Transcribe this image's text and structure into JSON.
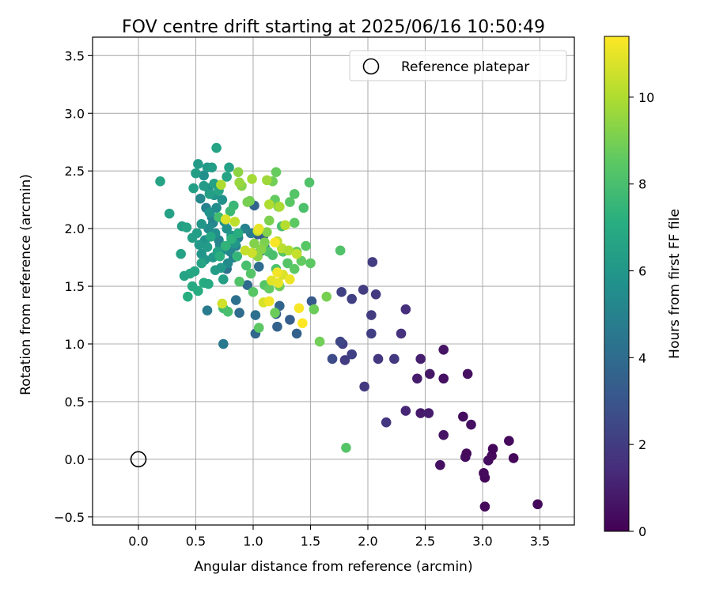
{
  "chart_data": {
    "type": "scatter",
    "title": "FOV centre drift starting at 2025/06/16 10:50:49",
    "xlabel": "Angular distance from reference (arcmin)",
    "ylabel": "Rotation from reference (arcmin)",
    "xlim": [
      -0.4,
      3.8
    ],
    "ylim": [
      -0.57,
      3.66
    ],
    "xticks": [
      0.0,
      0.5,
      1.0,
      1.5,
      2.0,
      2.5,
      3.0,
      3.5
    ],
    "xtick_labels": [
      "0.0",
      "0.5",
      "1.0",
      "1.5",
      "2.0",
      "2.5",
      "3.0",
      "3.5"
    ],
    "yticks": [
      -0.5,
      0.0,
      0.5,
      1.0,
      1.5,
      2.0,
      2.5,
      3.0,
      3.5
    ],
    "ytick_labels": [
      "−0.5",
      "0.0",
      "0.5",
      "1.0",
      "1.5",
      "2.0",
      "2.5",
      "3.0",
      "3.5"
    ],
    "grid": true,
    "legend": {
      "position": "top-right",
      "entries": [
        {
          "label": "Reference platepar",
          "marker": "open-circle"
        }
      ]
    },
    "reference_point": {
      "x": 0.0,
      "y": 0.0
    },
    "colorbar": {
      "label": "Hours from first FF file",
      "colormap": "viridis",
      "range": [
        0,
        11.4
      ],
      "ticks": [
        0,
        2,
        4,
        6,
        8,
        10
      ],
      "tick_labels": [
        "0",
        "2",
        "4",
        "6",
        "8",
        "10"
      ]
    },
    "series": [
      {
        "points": [
          [
            3.48,
            -0.39,
            0.2
          ],
          [
            3.02,
            -0.41,
            0.3
          ],
          [
            3.02,
            -0.16,
            0.2
          ],
          [
            3.01,
            -0.12,
            0.3
          ],
          [
            3.05,
            -0.01,
            0.4
          ],
          [
            3.08,
            0.03,
            0.3
          ],
          [
            3.09,
            0.09,
            0.2
          ],
          [
            3.23,
            0.16,
            0.3
          ],
          [
            3.27,
            0.01,
            0.2
          ],
          [
            2.85,
            0.02,
            0.4
          ],
          [
            2.86,
            0.05,
            0.3
          ],
          [
            2.9,
            0.3,
            0.5
          ],
          [
            2.83,
            0.37,
            0.4
          ],
          [
            2.66,
            0.21,
            0.6
          ],
          [
            2.63,
            -0.05,
            0.5
          ],
          [
            2.66,
            0.7,
            0.5
          ],
          [
            2.66,
            0.95,
            0.6
          ],
          [
            2.87,
            0.74,
            0.5
          ],
          [
            2.54,
            0.74,
            0.7
          ],
          [
            2.46,
            0.4,
            0.8
          ],
          [
            2.53,
            0.4,
            0.9
          ],
          [
            2.43,
            0.7,
            0.9
          ],
          [
            2.46,
            0.87,
            1.0
          ],
          [
            2.33,
            0.42,
            1.2
          ],
          [
            2.33,
            1.3,
            1.5
          ],
          [
            2.29,
            1.09,
            1.6
          ],
          [
            2.16,
            0.32,
            1.8
          ],
          [
            2.23,
            0.87,
            1.9
          ],
          [
            2.09,
            0.87,
            1.8
          ],
          [
            2.07,
            1.43,
            1.9
          ],
          [
            2.04,
            1.71,
            2.0
          ],
          [
            2.03,
            1.09,
            2.1
          ],
          [
            2.03,
            1.25,
            2.0
          ],
          [
            1.97,
            0.63,
            1.9
          ],
          [
            1.96,
            1.47,
            2.0
          ],
          [
            1.86,
            1.39,
            2.1
          ],
          [
            1.86,
            0.91,
            2.2
          ],
          [
            1.8,
            0.86,
            2.0
          ],
          [
            1.78,
            1.0,
            2.1
          ],
          [
            1.77,
            1.45,
            2.2
          ],
          [
            1.76,
            1.02,
            2.4
          ],
          [
            1.69,
            0.87,
            2.6
          ],
          [
            1.51,
            1.37,
            3.2
          ],
          [
            1.38,
            1.09,
            3.5
          ],
          [
            1.32,
            1.21,
            3.4
          ],
          [
            1.21,
            1.15,
            3.6
          ],
          [
            1.2,
            1.26,
            3.3
          ],
          [
            1.23,
            1.33,
            3.7
          ],
          [
            1.02,
            1.09,
            3.8
          ],
          [
            1.02,
            1.25,
            4.2
          ],
          [
            0.95,
            1.51,
            3.9
          ],
          [
            0.88,
            1.27,
            4.0
          ],
          [
            0.85,
            1.38,
            4.2
          ],
          [
            0.77,
            1.65,
            4.3
          ],
          [
            0.74,
            1.0,
            4.6
          ],
          [
            0.6,
            1.29,
            4.7
          ],
          [
            1.01,
            2.2,
            3.6
          ],
          [
            1.04,
            1.95,
            3.4
          ],
          [
            1.09,
            1.94,
            3.3
          ],
          [
            1.1,
            1.84,
            3.6
          ],
          [
            1.05,
            1.67,
            4.0
          ],
          [
            1.06,
            1.8,
            4.2
          ],
          [
            0.98,
            1.96,
            4.8
          ],
          [
            0.93,
            2.0,
            5.0
          ],
          [
            0.87,
            1.92,
            5.1
          ],
          [
            0.85,
            1.85,
            4.9
          ],
          [
            0.83,
            1.75,
            4.8
          ],
          [
            0.8,
            1.8,
            5.2
          ],
          [
            0.78,
            1.7,
            5.4
          ],
          [
            0.75,
            1.82,
            5.5
          ],
          [
            0.71,
            1.86,
            5.3
          ],
          [
            0.7,
            1.9,
            5.1
          ],
          [
            0.67,
            1.96,
            5.6
          ],
          [
            0.65,
            2.05,
            5.2
          ],
          [
            0.64,
            2.1,
            5.0
          ],
          [
            0.61,
            2.0,
            5.5
          ],
          [
            0.58,
            1.9,
            5.8
          ],
          [
            0.55,
            2.04,
            6.0
          ],
          [
            0.59,
            2.18,
            4.9
          ],
          [
            0.54,
            2.26,
            5.3
          ],
          [
            0.57,
            2.46,
            5.6
          ],
          [
            0.61,
            2.35,
            5.7
          ],
          [
            0.62,
            2.14,
            5.8
          ],
          [
            0.66,
            2.29,
            5.9
          ],
          [
            0.68,
            2.18,
            5.5
          ],
          [
            0.73,
            2.25,
            5.7
          ],
          [
            0.75,
            2.06,
            5.6
          ],
          [
            0.77,
            2.0,
            5.7
          ],
          [
            0.81,
            1.94,
            5.9
          ],
          [
            0.84,
            1.87,
            6.0
          ],
          [
            0.6,
            2.53,
            6.1
          ],
          [
            0.52,
            2.56,
            6.2
          ],
          [
            0.5,
            2.48,
            6.3
          ],
          [
            0.64,
            2.53,
            6.3
          ],
          [
            0.68,
            2.7,
            6.6
          ],
          [
            0.79,
            2.53,
            6.5
          ],
          [
            0.77,
            2.45,
            6.6
          ],
          [
            0.7,
            2.33,
            6.7
          ],
          [
            0.66,
            2.39,
            6.5
          ],
          [
            0.62,
            2.3,
            6.4
          ],
          [
            0.57,
            2.37,
            6.2
          ],
          [
            0.48,
            2.35,
            6.4
          ],
          [
            0.19,
            2.41,
            6.6
          ],
          [
            0.27,
            2.13,
            6.5
          ],
          [
            0.38,
            2.02,
            6.4
          ],
          [
            0.42,
            2.01,
            6.6
          ],
          [
            0.47,
            1.92,
            6.4
          ],
          [
            0.51,
            1.96,
            6.3
          ],
          [
            0.53,
            1.86,
            6.1
          ],
          [
            0.55,
            1.78,
            5.9
          ],
          [
            0.58,
            1.73,
            6.0
          ],
          [
            0.6,
            1.84,
            6.2
          ],
          [
            0.65,
            1.75,
            6.1
          ],
          [
            0.67,
            1.64,
            6.3
          ],
          [
            0.72,
            1.66,
            6.1
          ],
          [
            0.74,
            1.56,
            6.4
          ],
          [
            0.69,
            1.8,
            6.5
          ],
          [
            0.63,
            1.93,
            6.8
          ],
          [
            0.55,
            1.7,
            6.6
          ],
          [
            0.49,
            1.63,
            6.7
          ],
          [
            0.45,
            1.61,
            6.8
          ],
          [
            0.4,
            1.59,
            6.6
          ],
          [
            0.37,
            1.78,
            6.5
          ],
          [
            0.47,
            1.5,
            6.9
          ],
          [
            0.52,
            1.46,
            7.0
          ],
          [
            0.43,
            1.41,
            7.1
          ],
          [
            0.57,
            1.53,
            7.0
          ],
          [
            0.61,
            1.52,
            6.9
          ],
          [
            0.71,
            1.76,
            7.2
          ],
          [
            0.76,
            1.85,
            7.4
          ],
          [
            0.81,
            1.91,
            7.3
          ],
          [
            0.86,
            1.76,
            7.5
          ],
          [
            0.87,
            1.96,
            7.1
          ],
          [
            0.83,
            2.2,
            7.6
          ],
          [
            0.8,
            2.15,
            7.7
          ],
          [
            0.7,
            2.1,
            7.9
          ],
          [
            0.74,
            1.31,
            7.8
          ],
          [
            0.78,
            1.28,
            8.0
          ],
          [
            0.88,
            1.54,
            8.2
          ],
          [
            0.94,
            1.68,
            8.0
          ],
          [
            0.98,
            1.61,
            8.3
          ],
          [
            1.0,
            1.45,
            8.4
          ],
          [
            1.05,
            1.14,
            8.5
          ],
          [
            1.1,
            1.51,
            8.3
          ],
          [
            1.14,
            1.48,
            8.6
          ],
          [
            1.19,
            1.27,
            8.8
          ],
          [
            1.23,
            1.5,
            8.9
          ],
          [
            1.13,
            1.8,
            8.2
          ],
          [
            1.17,
            1.77,
            8.0
          ],
          [
            1.2,
            1.65,
            8.1
          ],
          [
            1.26,
            1.8,
            8.4
          ],
          [
            1.3,
            1.7,
            8.3
          ],
          [
            1.36,
            1.65,
            8.5
          ],
          [
            1.38,
            1.8,
            8.7
          ],
          [
            1.42,
            1.72,
            8.6
          ],
          [
            1.46,
            1.85,
            8.4
          ],
          [
            1.5,
            1.7,
            8.5
          ],
          [
            1.53,
            1.3,
            8.8
          ],
          [
            1.58,
            1.02,
            8.9
          ],
          [
            1.64,
            1.41,
            9.0
          ],
          [
            1.76,
            1.81,
            8.2
          ],
          [
            1.81,
            0.1,
            8.3
          ],
          [
            1.49,
            2.4,
            8.2
          ],
          [
            1.44,
            2.18,
            8.1
          ],
          [
            1.36,
            2.3,
            8.3
          ],
          [
            1.32,
            2.23,
            8.4
          ],
          [
            1.36,
            2.05,
            8.5
          ],
          [
            1.25,
            2.02,
            8.0
          ],
          [
            1.19,
            2.25,
            8.6
          ],
          [
            1.2,
            2.49,
            8.7
          ],
          [
            1.17,
            2.41,
            8.9
          ],
          [
            1.22,
            2.19,
            9.0
          ],
          [
            1.14,
            2.07,
            9.1
          ],
          [
            1.12,
            1.97,
            9.2
          ],
          [
            1.1,
            1.88,
            9.1
          ],
          [
            1.07,
            1.82,
            9.3
          ],
          [
            1.04,
            1.76,
            9.4
          ],
          [
            1.01,
            1.87,
            9.2
          ],
          [
            0.97,
            2.24,
            8.9
          ],
          [
            0.95,
            2.23,
            9.0
          ],
          [
            0.9,
            2.37,
            9.3
          ],
          [
            0.87,
            2.49,
            9.4
          ],
          [
            0.88,
            2.4,
            9.6
          ],
          [
            0.99,
            2.43,
            9.8
          ],
          [
            1.12,
            2.42,
            9.7
          ],
          [
            1.14,
            2.21,
            10.0
          ],
          [
            1.23,
            2.19,
            9.9
          ],
          [
            1.28,
            2.03,
            10.1
          ],
          [
            1.21,
            1.89,
            10.3
          ],
          [
            1.25,
            1.83,
            10.2
          ],
          [
            1.31,
            1.81,
            10.0
          ],
          [
            1.38,
            1.78,
            10.4
          ],
          [
            0.99,
            1.79,
            10.5
          ],
          [
            1.04,
            1.98,
            10.6
          ],
          [
            0.93,
            1.81,
            10.4
          ],
          [
            0.84,
            2.06,
            10.3
          ],
          [
            0.72,
            2.38,
            10.0
          ],
          [
            0.76,
            2.08,
            10.8
          ],
          [
            0.73,
            1.35,
            10.6
          ],
          [
            1.09,
            1.36,
            10.7
          ],
          [
            1.16,
            1.55,
            10.9
          ],
          [
            1.22,
            1.53,
            11.0
          ],
          [
            1.26,
            1.6,
            10.8
          ],
          [
            1.32,
            1.56,
            11.1
          ],
          [
            1.14,
            1.37,
            11.2
          ],
          [
            1.4,
            1.31,
            11.3
          ],
          [
            1.43,
            1.18,
            11.4
          ],
          [
            1.19,
            1.88,
            11.3
          ],
          [
            1.05,
            2.0,
            11.0
          ],
          [
            1.21,
            1.62,
            11.2
          ]
        ]
      }
    ]
  }
}
